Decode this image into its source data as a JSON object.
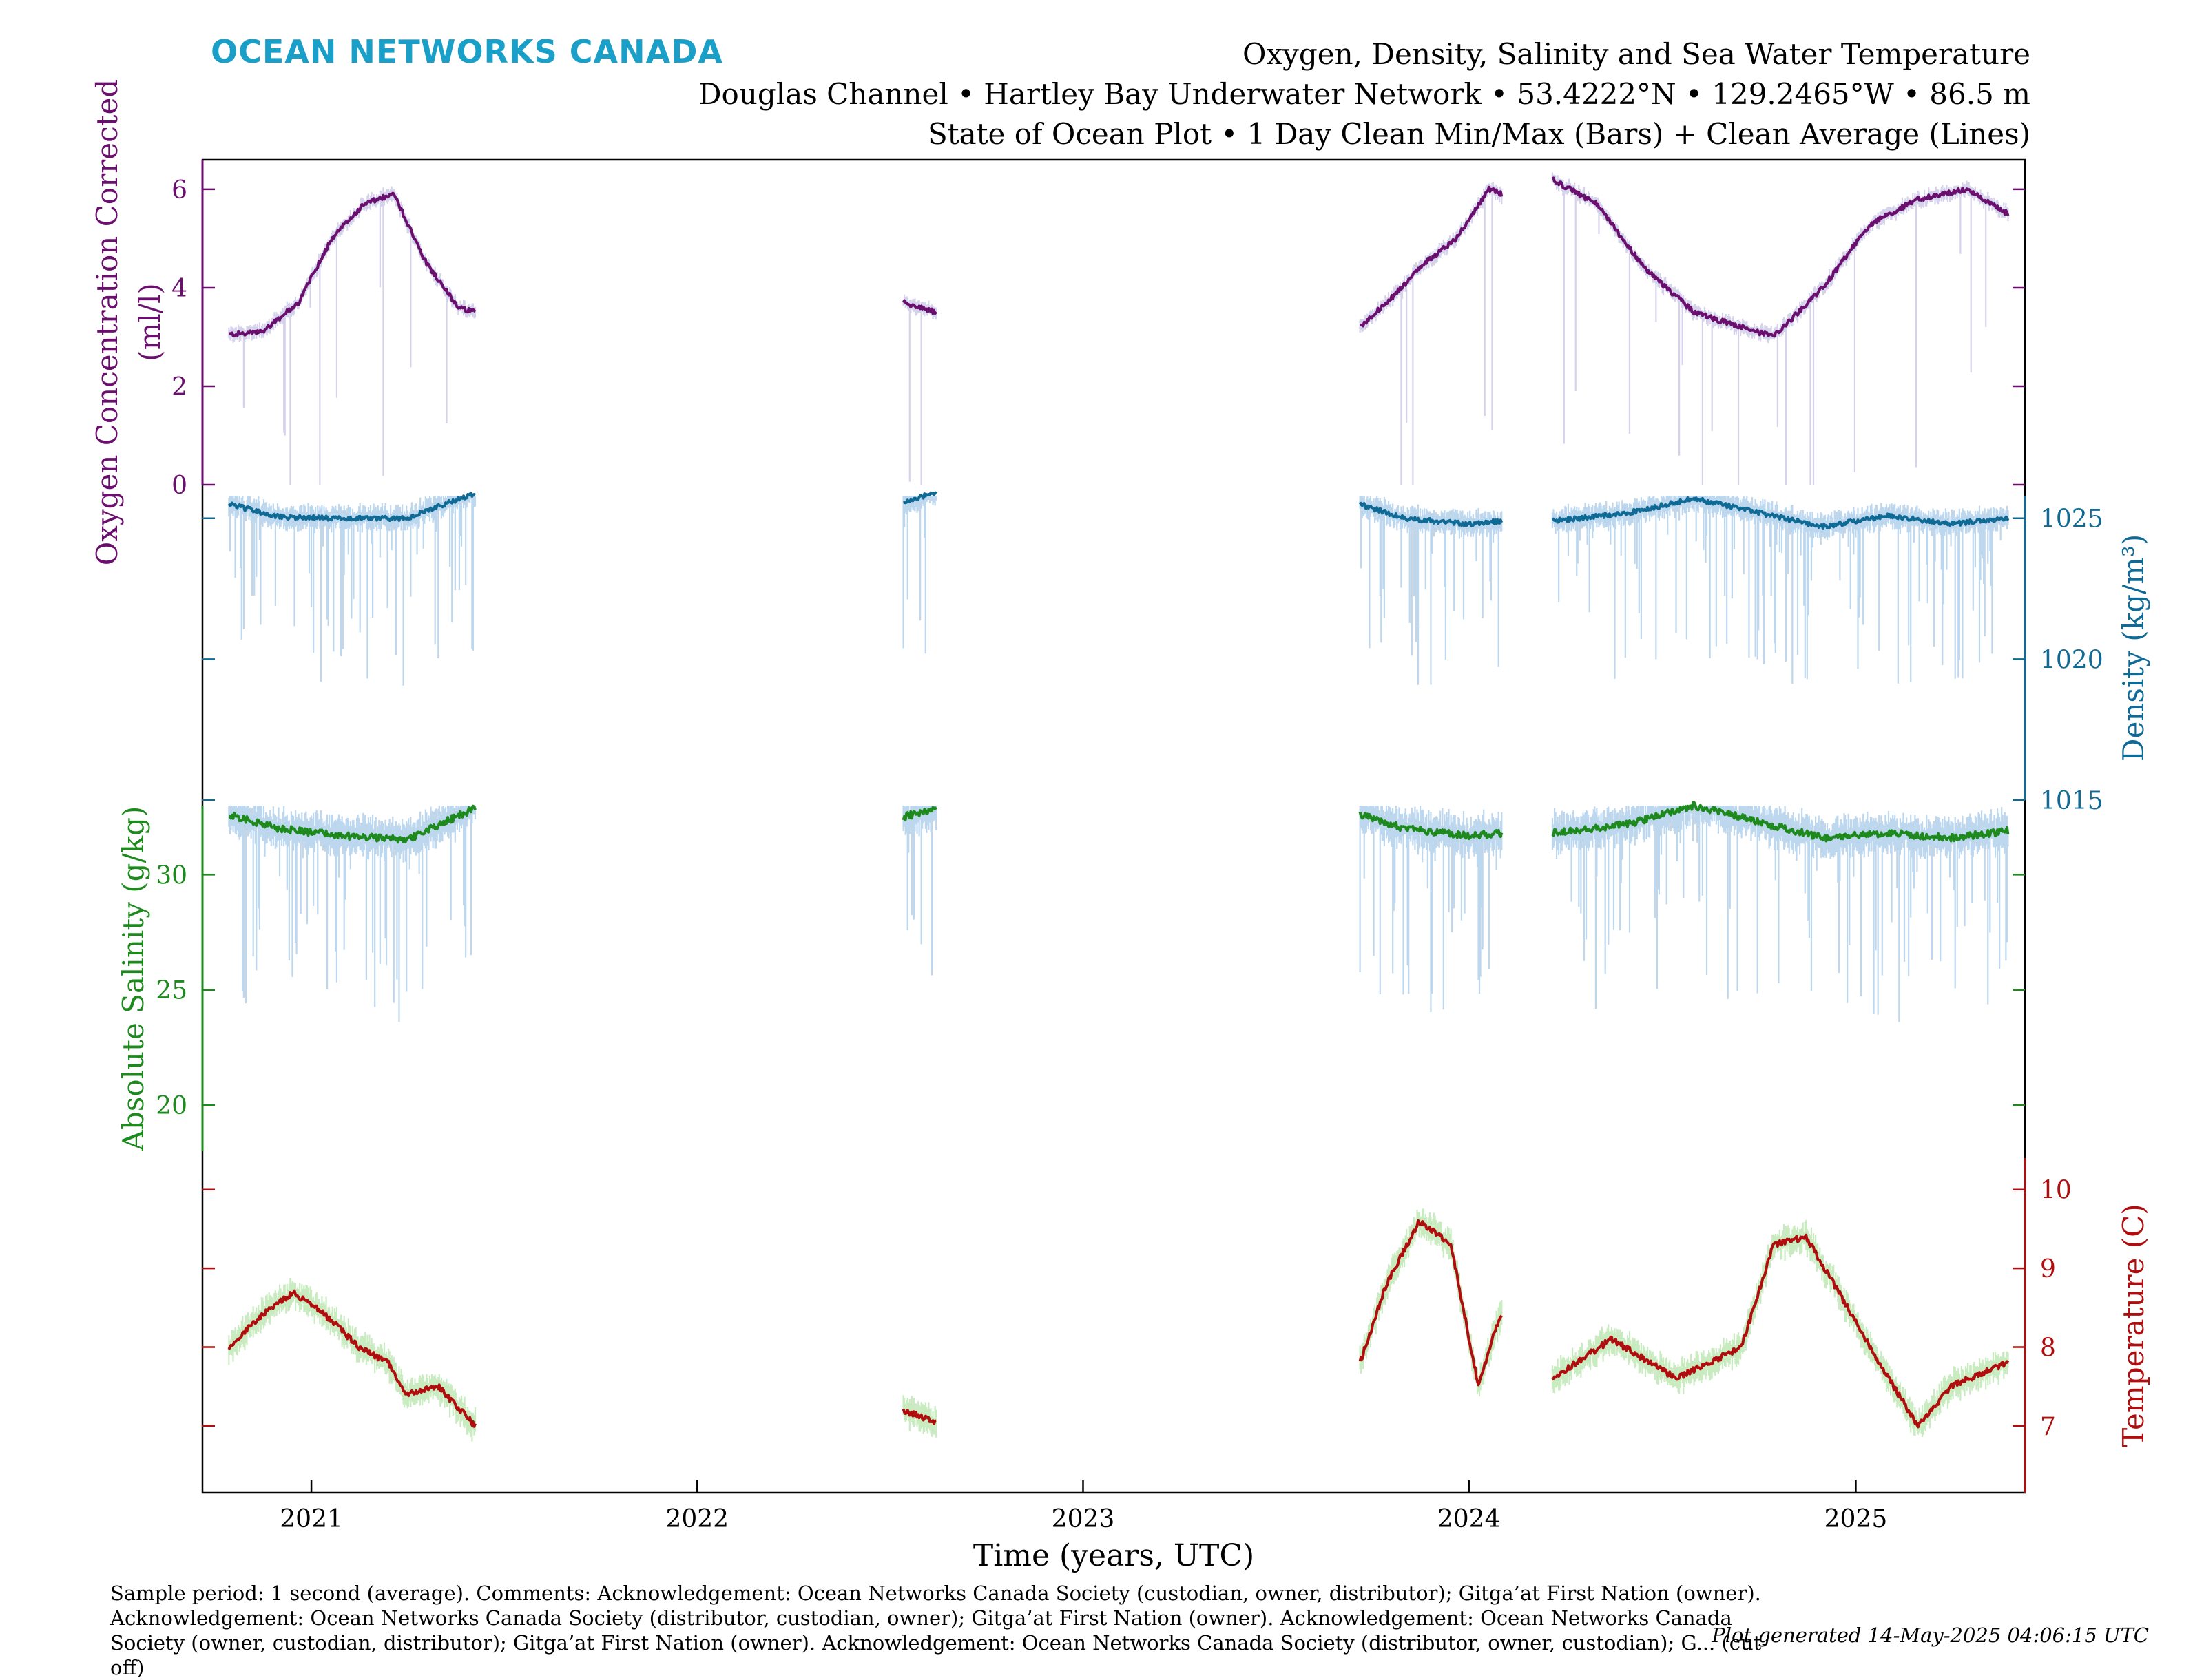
{
  "logo": "OCEAN NETWORKS CANADA",
  "title_lines": [
    "Oxygen, Density, Salinity and Sea Water Temperature",
    "Douglas Channel • Hartley Bay Underwater Network • 53.4222°N • 129.2465°W • 86.5 m",
    "State of Ocean Plot • 1 Day Clean Min/Max (Bars) + Clean Average (Lines)"
  ],
  "footer": {
    "comment": "Sample period: 1 second (average). Comments: Acknowledgement: Ocean Networks Canada Society (custodian, owner, distributor); Gitga’at First Nation (owner). Acknowledgement: Ocean Networks Canada Society (distributor, custodian, owner); Gitga’at First Nation (owner). Acknowledgement: Ocean Networks Canada Society (owner, custodian, distributor); Gitga’at First Nation (owner). Acknowledgement: Ocean Networks Canada Society (distributor, owner, custodian); G... (cut-off)",
    "generated": "Plot generated 14-May-2025 04:06:15 UTC"
  },
  "colors": {
    "oxygen": "#6a0f6e",
    "oxygen_band": "#d5d2ec",
    "density": "#0f6a96",
    "density_band": "#bdd7ee",
    "salinity": "#1e8a1e",
    "salinity_band": "#bdd7ee",
    "temperature": "#b00e0e",
    "temperature_band": "#c8ecc0"
  },
  "chart_data": {
    "type": "line",
    "xlabel": "Time (years, UTC)",
    "x_ticks": [
      "2021",
      "2022",
      "2023",
      "2024",
      "2025"
    ],
    "xlim": [
      "2020-09-20",
      "2025-06-10"
    ],
    "segments": [
      [
        "2020-10-15",
        "2021-06-05"
      ],
      [
        "2022-07-15",
        "2022-08-15"
      ],
      [
        "2023-09-20",
        "2024-02-01"
      ],
      [
        "2024-03-20",
        "2025-05-25"
      ]
    ],
    "panels": [
      {
        "name": "oxygen",
        "ylabel": "Oxygen Concentration Corrected (ml/l)",
        "ylabel_lines": [
          "Oxygen Concentration Corrected",
          "(ml/l)"
        ],
        "axis_side": "left",
        "ylim": [
          0,
          6.6
        ],
        "ticks": [
          0,
          2,
          4,
          6
        ],
        "ticks_labeled": true,
        "series": [
          {
            "segment": 0,
            "x": [
              "2020-10-15",
              "2020-11-15",
              "2020-12-20",
              "2021-01-20",
              "2021-02-20",
              "2021-03-20",
              "2021-04-20",
              "2021-05-20",
              "2021-06-05"
            ],
            "y": [
              3.05,
              3.1,
              3.7,
              5.0,
              5.7,
              5.9,
              4.5,
              3.6,
              3.5
            ]
          },
          {
            "segment": 1,
            "x": [
              "2022-07-15",
              "2022-08-15"
            ],
            "y": [
              3.7,
              3.5
            ]
          },
          {
            "segment": 2,
            "x": [
              "2023-09-20",
              "2023-10-20",
              "2023-11-20",
              "2023-12-20",
              "2024-01-20",
              "2024-02-01"
            ],
            "y": [
              3.2,
              3.8,
              4.5,
              5.0,
              6.0,
              5.9
            ]
          },
          {
            "segment": 3,
            "x": [
              "2024-03-20",
              "2024-05-01",
              "2024-06-15",
              "2024-08-01",
              "2024-09-15",
              "2024-10-15",
              "2024-12-01",
              "2025-01-15",
              "2025-03-01",
              "2025-04-15",
              "2025-05-25"
            ],
            "y": [
              6.2,
              5.7,
              4.4,
              3.5,
              3.2,
              3.0,
              4.0,
              5.3,
              5.8,
              6.0,
              5.5
            ]
          }
        ]
      },
      {
        "name": "density",
        "ylabel": "Density (kg/m³)",
        "axis_side": "right",
        "ylim": [
          1015,
          1025.8
        ],
        "ticks": [
          1015,
          1020,
          1025
        ],
        "ticks_labeled": true,
        "series": [
          {
            "segment": 0,
            "x": [
              "2020-10-15",
              "2020-12-01",
              "2021-02-01",
              "2021-04-01",
              "2021-06-05"
            ],
            "y": [
              1025.5,
              1025.05,
              1025.0,
              1025.0,
              1025.9
            ]
          },
          {
            "segment": 1,
            "x": [
              "2022-07-15",
              "2022-08-15"
            ],
            "y": [
              1025.6,
              1025.9
            ]
          },
          {
            "segment": 2,
            "x": [
              "2023-09-20",
              "2023-11-01",
              "2024-01-01",
              "2024-02-01"
            ],
            "y": [
              1025.5,
              1025.0,
              1024.8,
              1024.9
            ]
          },
          {
            "segment": 3,
            "x": [
              "2024-03-20",
              "2024-06-01",
              "2024-08-01",
              "2024-10-01",
              "2024-12-01",
              "2025-02-01",
              "2025-04-01",
              "2025-05-25"
            ],
            "y": [
              1024.9,
              1025.2,
              1025.7,
              1025.2,
              1024.7,
              1025.1,
              1024.8,
              1025.0
            ]
          }
        ]
      },
      {
        "name": "salinity",
        "ylabel": "Absolute Salinity (g/kg)",
        "axis_side": "left",
        "ylim": [
          18,
          33
        ],
        "ticks": [
          20,
          25,
          30
        ],
        "ticks_labeled": true,
        "series": [
          {
            "segment": 0,
            "x": [
              "2020-10-15",
              "2020-12-01",
              "2021-02-01",
              "2021-04-01",
              "2021-06-05"
            ],
            "y": [
              32.6,
              32.0,
              31.7,
              31.5,
              32.9
            ]
          },
          {
            "segment": 1,
            "x": [
              "2022-07-15",
              "2022-08-15"
            ],
            "y": [
              32.5,
              32.9
            ]
          },
          {
            "segment": 2,
            "x": [
              "2023-09-20",
              "2023-11-01",
              "2024-01-01",
              "2024-02-01"
            ],
            "y": [
              32.6,
              32.0,
              31.7,
              31.8
            ]
          },
          {
            "segment": 3,
            "x": [
              "2024-03-20",
              "2024-06-01",
              "2024-08-01",
              "2024-10-01",
              "2024-12-01",
              "2025-02-01",
              "2025-04-01",
              "2025-05-25"
            ],
            "y": [
              31.8,
              32.2,
              33.0,
              32.3,
              31.6,
              31.8,
              31.6,
              31.9
            ]
          }
        ]
      },
      {
        "name": "temperature",
        "ylabel": "Temperature (C)",
        "axis_side": "right",
        "ylim": [
          6.15,
          10.4
        ],
        "ticks": [
          7,
          8,
          9,
          10
        ],
        "ticks_labeled": true,
        "series": [
          {
            "segment": 0,
            "x": [
              "2020-10-15",
              "2020-11-15",
              "2020-12-15",
              "2021-01-15",
              "2021-02-15",
              "2021-03-15",
              "2021-04-01",
              "2021-05-01",
              "2021-06-05"
            ],
            "y": [
              8.0,
              8.4,
              8.7,
              8.4,
              8.0,
              7.8,
              7.4,
              7.5,
              7.0
            ]
          },
          {
            "segment": 1,
            "x": [
              "2022-07-15",
              "2022-08-15"
            ],
            "y": [
              7.2,
              7.05
            ]
          },
          {
            "segment": 2,
            "x": [
              "2023-09-20",
              "2023-10-15",
              "2023-11-15",
              "2023-12-15",
              "2024-01-10",
              "2024-01-25",
              "2024-02-01"
            ],
            "y": [
              7.8,
              8.8,
              9.6,
              9.3,
              7.5,
              8.2,
              8.4
            ]
          },
          {
            "segment": 3,
            "x": [
              "2024-03-20",
              "2024-05-15",
              "2024-07-15",
              "2024-09-15",
              "2024-10-15",
              "2024-11-15",
              "2024-12-20",
              "2025-02-01",
              "2025-03-01",
              "2025-04-01",
              "2025-05-25"
            ],
            "y": [
              7.6,
              8.1,
              7.6,
              8.0,
              9.3,
              9.4,
              8.6,
              7.6,
              7.0,
              7.5,
              7.8
            ]
          }
        ]
      }
    ]
  }
}
